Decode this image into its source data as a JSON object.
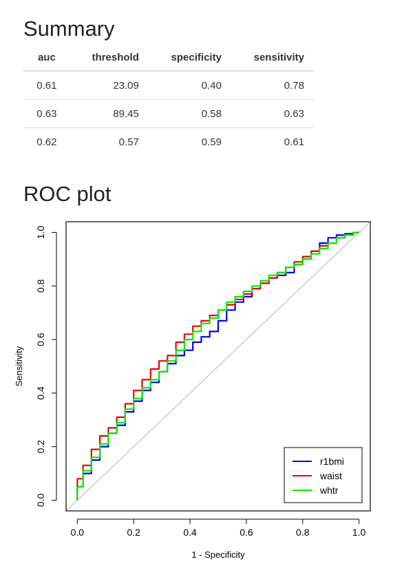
{
  "summary": {
    "title": "Summary",
    "columns": [
      "auc",
      "threshold",
      "specificity",
      "sensitivity"
    ],
    "rows": [
      [
        "0.61",
        "23.09",
        "0.40",
        "0.78"
      ],
      [
        "0.63",
        "89.45",
        "0.58",
        "0.63"
      ],
      [
        "0.62",
        "0.57",
        "0.59",
        "0.61"
      ]
    ]
  },
  "roc": {
    "title": "ROC plot"
  },
  "chart_data": {
    "type": "line",
    "title": "",
    "xlabel": "1 - Specificity",
    "ylabel": "Sensitivity",
    "xlim": [
      -0.04,
      1.04
    ],
    "ylim": [
      -0.04,
      1.04
    ],
    "xticks": [
      "0.0",
      "0.2",
      "0.4",
      "0.6",
      "0.8",
      "1.0"
    ],
    "yticks": [
      "0.0",
      "0.2",
      "0.4",
      "0.6",
      "0.8",
      "1.0"
    ],
    "grid": false,
    "legend_position": "bottom-right",
    "reference_line": {
      "x": [
        -0.04,
        1.04
      ],
      "y": [
        -0.04,
        1.04
      ],
      "color": "#bfbfbf"
    },
    "series": [
      {
        "name": "r1bmi",
        "color": "#0000ee",
        "x": [
          0,
          0.02,
          0.05,
          0.08,
          0.11,
          0.14,
          0.17,
          0.2,
          0.23,
          0.26,
          0.29,
          0.32,
          0.35,
          0.38,
          0.41,
          0.44,
          0.47,
          0.5,
          0.53,
          0.56,
          0.59,
          0.62,
          0.65,
          0.68,
          0.71,
          0.74,
          0.77,
          0.8,
          0.83,
          0.86,
          0.89,
          0.92,
          0.95,
          0.98,
          1.0
        ],
        "y": [
          0,
          0.05,
          0.1,
          0.15,
          0.2,
          0.25,
          0.28,
          0.33,
          0.37,
          0.41,
          0.44,
          0.48,
          0.51,
          0.54,
          0.56,
          0.59,
          0.61,
          0.63,
          0.67,
          0.71,
          0.74,
          0.76,
          0.79,
          0.81,
          0.83,
          0.84,
          0.85,
          0.88,
          0.9,
          0.93,
          0.96,
          0.98,
          0.99,
          0.995,
          1.0
        ]
      },
      {
        "name": "waist",
        "color": "#ee0000",
        "x": [
          0,
          0.02,
          0.05,
          0.08,
          0.11,
          0.14,
          0.17,
          0.2,
          0.23,
          0.26,
          0.29,
          0.32,
          0.35,
          0.38,
          0.41,
          0.44,
          0.47,
          0.5,
          0.53,
          0.56,
          0.59,
          0.62,
          0.65,
          0.68,
          0.71,
          0.74,
          0.77,
          0.8,
          0.83,
          0.86,
          0.89,
          0.92,
          0.95,
          0.98,
          1.0
        ],
        "y": [
          0,
          0.08,
          0.13,
          0.19,
          0.24,
          0.27,
          0.31,
          0.36,
          0.41,
          0.45,
          0.49,
          0.52,
          0.54,
          0.59,
          0.62,
          0.65,
          0.67,
          0.69,
          0.71,
          0.73,
          0.75,
          0.77,
          0.79,
          0.81,
          0.83,
          0.85,
          0.87,
          0.89,
          0.91,
          0.93,
          0.95,
          0.96,
          0.98,
          0.99,
          1.0
        ]
      },
      {
        "name": "whtr",
        "color": "#00ee00",
        "x": [
          0,
          0.02,
          0.05,
          0.08,
          0.11,
          0.14,
          0.17,
          0.2,
          0.23,
          0.26,
          0.29,
          0.32,
          0.35,
          0.38,
          0.41,
          0.44,
          0.47,
          0.5,
          0.53,
          0.56,
          0.59,
          0.62,
          0.65,
          0.68,
          0.71,
          0.74,
          0.77,
          0.8,
          0.83,
          0.86,
          0.89,
          0.92,
          0.95,
          0.98,
          1.0
        ],
        "y": [
          0,
          0.05,
          0.11,
          0.16,
          0.21,
          0.25,
          0.29,
          0.34,
          0.38,
          0.42,
          0.45,
          0.48,
          0.52,
          0.56,
          0.6,
          0.63,
          0.66,
          0.68,
          0.71,
          0.74,
          0.76,
          0.78,
          0.8,
          0.82,
          0.84,
          0.85,
          0.87,
          0.88,
          0.9,
          0.92,
          0.94,
          0.96,
          0.98,
          0.99,
          1.0
        ]
      }
    ]
  }
}
